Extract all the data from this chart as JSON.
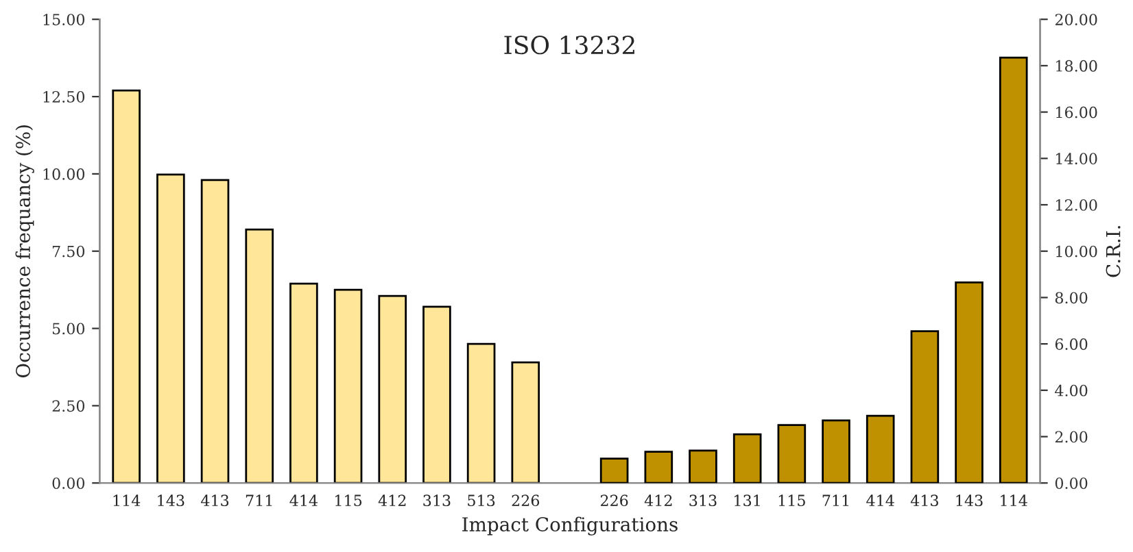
{
  "chart_data": {
    "type": "bar",
    "title": "ISO 13232",
    "xlabel": "Impact Configurations",
    "ylabel": "Occurrence frequancy (%)",
    "y2label": "C.R.I.",
    "categories": [
      "114",
      "143",
      "413",
      "711",
      "414",
      "115",
      "412",
      "313",
      "513",
      "226",
      null,
      "226",
      "412",
      "313",
      "131",
      "115",
      "711",
      "414",
      "413",
      "143",
      "114"
    ],
    "series": [
      {
        "color": "#ffe699",
        "values": [
          12.7,
          9.98,
          9.8,
          8.2,
          6.45,
          6.25,
          6.05,
          5.7,
          4.5,
          3.9,
          null,
          null,
          null,
          null,
          null,
          null,
          null,
          null,
          null,
          null,
          null
        ]
      },
      {
        "color": "#bf9000",
        "axis": "y2",
        "values": [
          null,
          null,
          null,
          null,
          null,
          null,
          null,
          null,
          null,
          null,
          null,
          1.05,
          1.35,
          1.4,
          2.1,
          2.5,
          2.7,
          2.9,
          6.55,
          8.65,
          18.35
        ]
      }
    ],
    "ylim": [
      0,
      15
    ],
    "yticks": [
      {
        "value": 0,
        "label": "0.00"
      },
      {
        "value": 2.5,
        "label": "2.50"
      },
      {
        "value": 5,
        "label": "5.00"
      },
      {
        "value": 7.5,
        "label": "7.50"
      },
      {
        "value": 10,
        "label": "10.00"
      },
      {
        "value": 12.5,
        "label": "12.50"
      },
      {
        "value": 15,
        "label": "15.00"
      }
    ],
    "y2lim": [
      0,
      20
    ],
    "y2ticks": [
      {
        "value": 0,
        "label": "0.00"
      },
      {
        "value": 2,
        "label": "2.00"
      },
      {
        "value": 4,
        "label": "4.00"
      },
      {
        "value": 6,
        "label": "6.00"
      },
      {
        "value": 8,
        "label": "8.00"
      },
      {
        "value": 10,
        "label": "10.00"
      },
      {
        "value": 12,
        "label": "12.00"
      },
      {
        "value": 14,
        "label": "14.00"
      },
      {
        "value": 16,
        "label": "16.00"
      },
      {
        "value": 18,
        "label": "18.00"
      },
      {
        "value": 20,
        "label": "20.00"
      }
    ],
    "grid": false,
    "legend": false
  }
}
